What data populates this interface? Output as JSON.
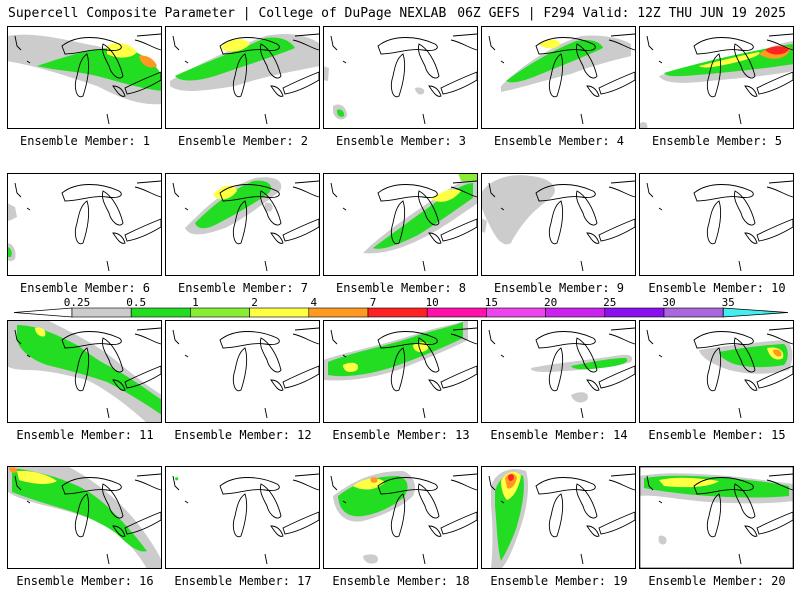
{
  "header": {
    "title_left": "Supercell Composite Parameter | College of DuPage NEXLAB",
    "title_right": "06Z GEFS | F294 Valid: 12Z THU JUN 19 2025"
  },
  "colorbar": {
    "levels": [
      "0.25",
      "0.5",
      "1",
      "2",
      "4",
      "7",
      "10",
      "15",
      "20",
      "25",
      "30",
      "35"
    ],
    "colors": [
      "#cccccc",
      "#22dd22",
      "#88ee33",
      "#ffff44",
      "#ff9922",
      "#ff2222",
      "#ff11aa",
      "#ee44ee",
      "#cc22ee",
      "#8811ee",
      "#aa66dd",
      "#44eeee"
    ]
  },
  "members": [
    {
      "label": "Ensemble Member: 1"
    },
    {
      "label": "Ensemble Member: 2"
    },
    {
      "label": "Ensemble Member: 3"
    },
    {
      "label": "Ensemble Member: 4"
    },
    {
      "label": "Ensemble Member: 5"
    },
    {
      "label": "Ensemble Member: 6"
    },
    {
      "label": "Ensemble Member: 7"
    },
    {
      "label": "Ensemble Member: 8"
    },
    {
      "label": "Ensemble Member: 9"
    },
    {
      "label": "Ensemble Member: 10"
    },
    {
      "label": "Ensemble Member: 11"
    },
    {
      "label": "Ensemble Member: 12"
    },
    {
      "label": "Ensemble Member: 13"
    },
    {
      "label": "Ensemble Member: 14"
    },
    {
      "label": "Ensemble Member: 15"
    },
    {
      "label": "Ensemble Member: 16"
    },
    {
      "label": "Ensemble Member: 17"
    },
    {
      "label": "Ensemble Member: 18"
    },
    {
      "label": "Ensemble Member: 19"
    },
    {
      "label": "Ensemble Member: 20"
    }
  ]
}
